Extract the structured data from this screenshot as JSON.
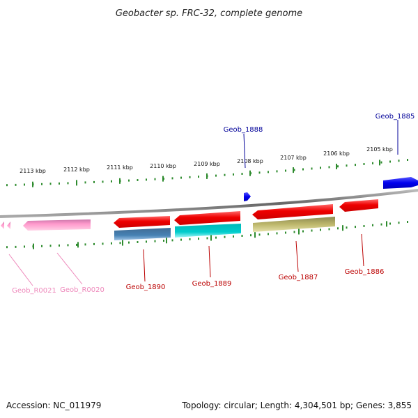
{
  "title": "Geobacter sp. FRC-32, complete genome",
  "footer": {
    "accession": "Accession: NC_011979",
    "summary": "Topology: circular; Length: 4,304,501 bp; Genes: 3,855"
  },
  "scale": {
    "tick_labels": [
      "2113 kbp",
      "2112 kbp",
      "2111 kbp",
      "2110 kbp",
      "2109 kbp",
      "2108 kbp",
      "2107 kbp",
      "2106 kbp",
      "2105 kbp"
    ]
  },
  "colors": {
    "backbone": "#888888",
    "ticks": "#2e8b2e",
    "cds_forward": "#0000ee",
    "cds_reverse": "#ee0000",
    "rna": "#ff99cc",
    "label_forward": "#000099",
    "label_reverse": "#bb0000",
    "label_rna": "#ee88bb"
  },
  "genes": [
    {
      "id": "Geob_1885",
      "label": "Geob_1885",
      "strand": "forward",
      "kind": "cds"
    },
    {
      "id": "Geob_1888",
      "label": "Geob_1888",
      "strand": "forward",
      "kind": "cds"
    },
    {
      "id": "Geob_1886",
      "label": "Geob_1886",
      "strand": "reverse",
      "kind": "cds"
    },
    {
      "id": "Geob_1887",
      "label": "Geob_1887",
      "strand": "reverse",
      "kind": "cds"
    },
    {
      "id": "Geob_1889",
      "label": "Geob_1889",
      "strand": "reverse",
      "kind": "cds"
    },
    {
      "id": "Geob_1890",
      "label": "Geob_1890",
      "strand": "reverse",
      "kind": "cds"
    },
    {
      "id": "Geob_R0020",
      "label": "Geob_R0020",
      "strand": "reverse",
      "kind": "rna"
    },
    {
      "id": "Geob_R0021",
      "label": "Geob_R0021",
      "strand": "reverse",
      "kind": "rna"
    }
  ]
}
